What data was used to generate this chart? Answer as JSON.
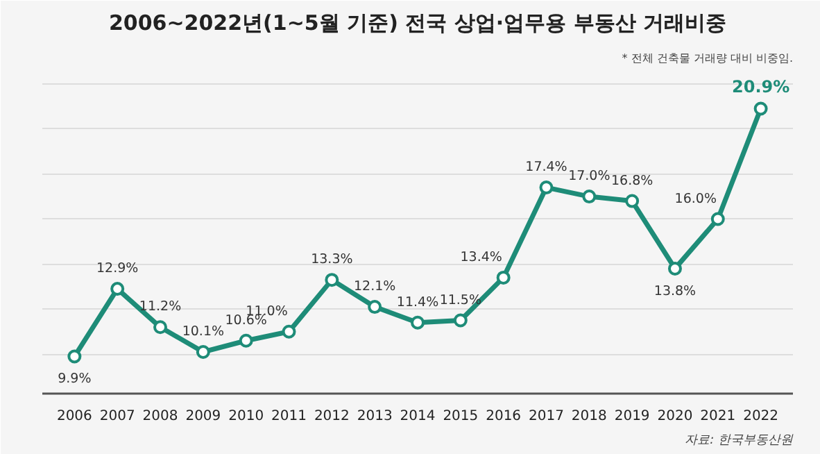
{
  "chart_data": {
    "type": "line",
    "title": "2006~2022년(1~5월 기준) 전국 상업·업무용 부동산 거래비중",
    "categories": [
      "2006",
      "2007",
      "2008",
      "2009",
      "2010",
      "2011",
      "2012",
      "2013",
      "2014",
      "2015",
      "2016",
      "2017",
      "2018",
      "2019",
      "2020",
      "2021",
      "2022"
    ],
    "series": [
      {
        "color": "#1e8c78",
        "values": [
          9.9,
          12.9,
          11.2,
          10.1,
          10.6,
          11.0,
          13.3,
          12.1,
          11.4,
          11.5,
          13.4,
          17.4,
          17.0,
          16.8,
          13.8,
          16.0,
          20.9
        ],
        "value_labels": [
          "9.9%",
          "12.9%",
          "11.2%",
          "10.1%",
          "10.6%",
          "11.0%",
          "13.3%",
          "12.1%",
          "11.4%",
          "11.5%",
          "13.4%",
          "17.4%",
          "17.0%",
          "16.8%",
          "13.8%",
          "16.0%",
          "20.9%"
        ]
      }
    ],
    "tick_labels": "x",
    "grid": "y",
    "marker": "circle",
    "line_style": "solid",
    "annotations": [
      "* 전체 건축물 거래량 대비 비중임.",
      "자료: 한국부동산원"
    ]
  }
}
